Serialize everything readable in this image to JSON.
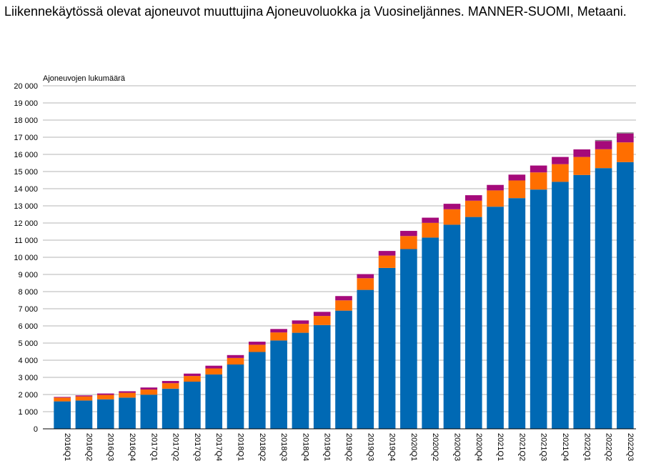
{
  "title": "Liikennekäytössä olevat ajoneuvot muuttujina Ajoneuvoluokka ja Vuosineljännes. MANNER-SUOMI, Metaani.",
  "chart_data": {
    "type": "bar",
    "stacked": true,
    "ylabel": "Ajoneuvojen lukumäärä",
    "xlabel": "",
    "ylim": [
      0,
      20000
    ],
    "ytick_step": 1000,
    "ytick_labels": [
      "0",
      "1 000",
      "2 000",
      "3 000",
      "4 000",
      "5 000",
      "6 000",
      "7 000",
      "8 000",
      "9 000",
      "10 000",
      "11 000",
      "12 000",
      "13 000",
      "14 000",
      "15 000",
      "16 000",
      "17 000",
      "18 000",
      "19 000",
      "20 000"
    ],
    "grid": true,
    "legend": "none",
    "categories": [
      "2016Q1",
      "2016Q2",
      "2016Q3",
      "2016Q4",
      "2017Q1",
      "2017Q2",
      "2017Q3",
      "2017Q4",
      "2018Q1",
      "2018Q2",
      "2018Q3",
      "2018Q4",
      "2019Q1",
      "2019Q2",
      "2019Q3",
      "2019Q4",
      "2020Q1",
      "2020Q2",
      "2020Q3",
      "2020Q4",
      "2021Q1",
      "2021Q2",
      "2021Q3",
      "2021Q4",
      "2022Q1",
      "2022Q2",
      "2022Q3"
    ],
    "series": [
      {
        "color": "#0069b4",
        "values": [
          1600,
          1650,
          1720,
          1820,
          1990,
          2340,
          2750,
          3170,
          3750,
          4480,
          5150,
          5600,
          6050,
          6890,
          8100,
          9380,
          10480,
          11150,
          11900,
          12350,
          12950,
          13450,
          13950,
          14400,
          14800,
          15200,
          15550
        ]
      },
      {
        "color": "#ff6e00",
        "values": [
          220,
          240,
          260,
          280,
          300,
          320,
          330,
          350,
          380,
          420,
          470,
          520,
          530,
          600,
          680,
          720,
          760,
          860,
          900,
          950,
          950,
          1030,
          1000,
          1030,
          1050,
          1100,
          1150
        ]
      },
      {
        "color": "#a50a7a",
        "values": [
          40,
          60,
          80,
          90,
          120,
          130,
          140,
          160,
          170,
          180,
          200,
          200,
          240,
          250,
          240,
          270,
          300,
          300,
          320,
          320,
          320,
          340,
          400,
          420,
          440,
          480,
          520
        ]
      },
      {
        "color": "#7f7f7f",
        "values": [
          0,
          0,
          0,
          0,
          0,
          0,
          0,
          0,
          0,
          0,
          0,
          0,
          0,
          0,
          0,
          0,
          0,
          0,
          0,
          0,
          0,
          0,
          0,
          0,
          0,
          60,
          60
        ]
      }
    ]
  }
}
